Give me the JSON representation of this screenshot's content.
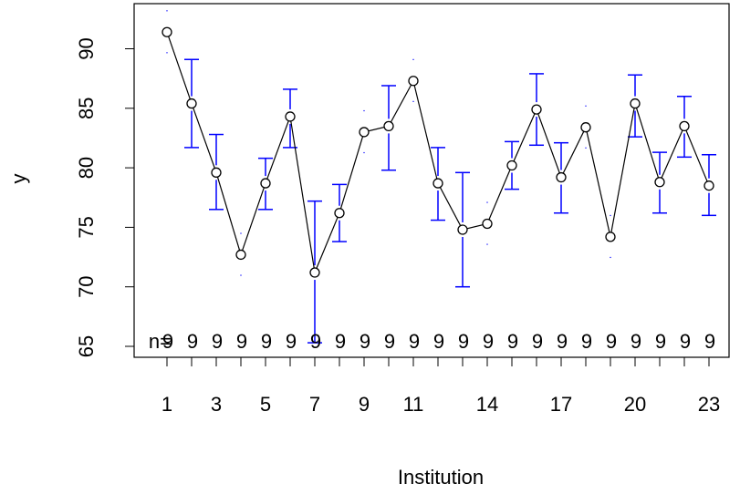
{
  "chart_data": {
    "type": "line",
    "xlabel": "Institution",
    "ylabel": "y",
    "xlim": [
      1,
      23
    ],
    "ylim": [
      65,
      92
    ],
    "x_tick_labels": [
      "1",
      "3",
      "5",
      "7",
      "9",
      "11",
      "14",
      "17",
      "20",
      "23"
    ],
    "x_tick_values": [
      1,
      3,
      5,
      7,
      9,
      11,
      14,
      17,
      20,
      23
    ],
    "y_tick_labels": [
      "65",
      "70",
      "75",
      "80",
      "85",
      "90"
    ],
    "y_tick_values": [
      65,
      70,
      75,
      80,
      85,
      90
    ],
    "x": [
      1,
      2,
      3,
      4,
      5,
      6,
      7,
      8,
      9,
      10,
      11,
      12,
      13,
      14,
      15,
      16,
      17,
      18,
      19,
      20,
      21,
      22,
      23
    ],
    "means": [
      91.4,
      85.4,
      79.6,
      72.7,
      78.7,
      84.3,
      71.2,
      76.2,
      83.0,
      83.5,
      87.3,
      78.7,
      74.8,
      75.3,
      80.2,
      84.9,
      79.2,
      83.4,
      74.2,
      85.4,
      78.8,
      83.5,
      78.5
    ],
    "ci_lower": [
      null,
      81.7,
      76.5,
      null,
      76.5,
      81.7,
      65.3,
      73.8,
      null,
      79.8,
      null,
      75.6,
      70.0,
      null,
      78.2,
      81.9,
      76.2,
      null,
      null,
      82.6,
      76.2,
      80.9,
      76.0
    ],
    "ci_upper": [
      null,
      89.1,
      82.8,
      null,
      80.8,
      86.6,
      77.2,
      78.6,
      null,
      86.9,
      null,
      81.7,
      79.6,
      null,
      82.2,
      87.9,
      82.1,
      null,
      null,
      87.8,
      81.3,
      86.0,
      81.1
    ],
    "n_label_left": "n=",
    "n_values": [
      "9",
      "9",
      "9",
      "9",
      "9",
      "9",
      "9",
      "9",
      "9",
      "9",
      "9",
      "9",
      "9",
      "9",
      "9",
      "9",
      "9",
      "9",
      "9",
      "9",
      "9",
      "9",
      "9"
    ],
    "colors": {
      "line": "#000000",
      "ci": "#0000ff",
      "points": "#000000"
    }
  }
}
